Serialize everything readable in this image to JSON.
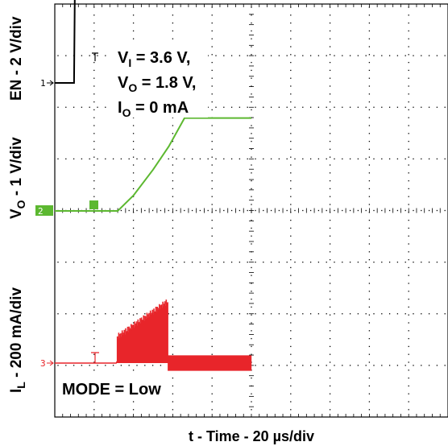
{
  "chart_data": {
    "type": "line",
    "title": "",
    "xlabel": "t - Time - 20 µs/div",
    "time_per_div_us": 20,
    "grid": true,
    "conditions": [
      {
        "main": "V",
        "sub": "I",
        "rest": " = 3.6 V,"
      },
      {
        "main": "V",
        "sub": "O",
        "rest": " = 1.8 V,"
      },
      {
        "main": "I",
        "sub": "O",
        "rest": " = 0 mA"
      }
    ],
    "mode_label": "MODE = Low",
    "channels": [
      {
        "id": "1",
        "label_main": "EN - 2 V/div",
        "label_sub": "",
        "label_rest": "",
        "volts_per_div": 2,
        "color": "#000000",
        "time_us": [
          0,
          9.8,
          10.2,
          100
        ],
        "values": [
          0,
          0,
          3.6,
          3.6
        ]
      },
      {
        "id": "2",
        "label_main": "V",
        "label_sub": "O",
        "label_rest": " - 1 V/div",
        "volts_per_div": 1,
        "color": "#5cb830",
        "time_us": [
          0,
          32,
          40,
          50,
          58,
          66,
          100
        ],
        "values": [
          0,
          0,
          0.3,
          0.8,
          1.25,
          1.8,
          1.8
        ]
      },
      {
        "id": "3",
        "label_main": "I",
        "label_sub": "L",
        "label_rest": " - 200 mA/div",
        "volts_per_div": 0.2,
        "color": "#e8252a",
        "time_us": [
          0,
          31.5,
          31.5,
          57.5,
          57.5,
          100
        ],
        "envelope_max_mA": [
          0,
          0,
          100,
          240,
          30,
          30
        ],
        "envelope_min_mA": [
          0,
          0,
          0,
          0,
          -30,
          -30
        ]
      }
    ]
  }
}
